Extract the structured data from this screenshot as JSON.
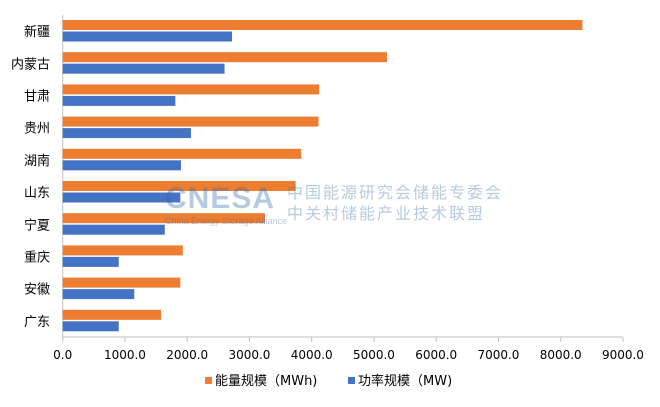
{
  "chart_data": {
    "type": "bar",
    "orientation": "horizontal",
    "categories": [
      "新疆",
      "内蒙古",
      "甘肃",
      "贵州",
      "湖南",
      "山东",
      "宁夏",
      "重庆",
      "安徽",
      "广东"
    ],
    "series": [
      {
        "name": "能量规模（MWh)",
        "color": "#ed7d31",
        "values": [
          8350,
          5210,
          4120,
          4110,
          3830,
          3740,
          3250,
          1930,
          1890,
          1580
        ]
      },
      {
        "name": "功率规模（MW)",
        "color": "#4472c4",
        "values": [
          2720,
          2600,
          1810,
          2060,
          1900,
          1890,
          1640,
          900,
          1150,
          900
        ]
      }
    ],
    "xlim": [
      0,
      9000
    ],
    "xticks": [
      "0.0",
      "1000.0",
      "2000.0",
      "3000.0",
      "4000.0",
      "5000.0",
      "6000.0",
      "7000.0",
      "8000.0",
      "9000.0"
    ],
    "grid": false,
    "legend": "bottom",
    "title": "",
    "xlabel": "",
    "ylabel": ""
  },
  "watermark": {
    "logo": "CNESA",
    "tagline": "China Energy Storage Alliance",
    "line1": "中国能源研究会储能专委会",
    "line2": "中关村储能产业技术联盟"
  }
}
